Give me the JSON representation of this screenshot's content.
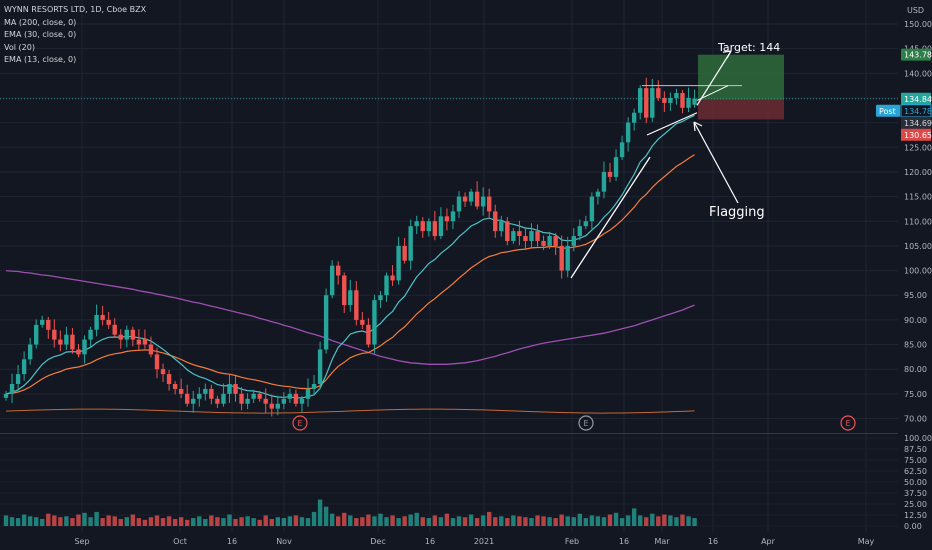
{
  "legend": {
    "title": "WYNN RESORTS LTD, 1D, Cboe BZX",
    "ma200": "MA (200, close, 0)",
    "ema30": "EMA (30, close, 0)",
    "vol": "Vol (20)",
    "ema13": "EMA (13, close, 0)"
  },
  "currency": "USD",
  "colors": {
    "background": "#131722",
    "up": "#26a69a",
    "down": "#ef5350",
    "ma200": "#9c4fb0",
    "ema30": "#f57c3a",
    "ema13": "#4cc3c7",
    "target_zone": "#2e6b3b",
    "stop_zone": "#6b2c33"
  },
  "tags": {
    "target": "143.78",
    "last": "134.84",
    "post_label": "Post",
    "post_value": "134.78",
    "entry": "134.69",
    "stop": "130.65"
  },
  "annotations": {
    "target": "Target: 144",
    "flag": "Flagging"
  },
  "chart_data": [
    {
      "type": "candlestick",
      "pane": "price",
      "ylim": [
        65,
        152
      ],
      "y_ticks": [
        "70.00",
        "75.00",
        "80.00",
        "85.00",
        "90.00",
        "95.00",
        "100.00",
        "105.00",
        "110.00",
        "115.00",
        "120.00",
        "125.00",
        "130.00",
        "135.00",
        "140.00",
        "145.00",
        "150.00"
      ],
      "x_ticks": [
        "Sep",
        "Oct",
        "16",
        "Nov",
        "Dec",
        "16",
        "2021",
        "Feb",
        "16",
        "Mar",
        "16",
        "Apr",
        "May"
      ],
      "close": [
        75,
        77,
        79,
        82,
        85,
        89,
        90,
        88,
        86,
        85,
        87,
        84,
        83,
        86,
        88,
        91,
        90,
        89,
        87,
        86,
        88,
        86,
        85,
        85,
        83,
        80,
        79,
        77,
        76,
        75,
        73,
        74,
        75,
        76,
        74,
        73,
        75,
        77,
        75,
        73,
        74,
        75,
        74,
        73,
        72,
        73,
        74,
        75,
        73,
        74,
        76,
        77,
        84,
        95,
        101,
        99,
        93,
        96,
        90,
        89,
        85,
        94,
        95,
        99,
        98,
        105,
        102,
        109,
        110,
        108,
        110,
        107,
        111,
        110,
        112,
        115,
        114,
        116,
        113,
        115,
        112,
        108,
        110,
        106,
        108,
        107,
        106,
        108,
        106,
        105,
        107,
        105,
        100,
        105,
        107,
        109,
        110,
        115,
        116,
        120,
        119,
        123,
        126,
        130,
        132,
        137,
        131,
        137,
        135,
        134,
        135,
        136,
        133,
        135,
        134.84
      ],
      "ma200": [
        100,
        99.9,
        99.8,
        99.6,
        99.5,
        99.3,
        99.1,
        99,
        98.8,
        98.6,
        98.4,
        98.2,
        98,
        97.8,
        97.6,
        97.4,
        97.2,
        97,
        96.8,
        96.6,
        96.4,
        96.2,
        95.9,
        95.7,
        95.5,
        95.2,
        95,
        94.7,
        94.5,
        94.2,
        93.9,
        93.6,
        93.4,
        93.1,
        92.8,
        92.5,
        92.2,
        91.9,
        91.6,
        91.3,
        91,
        90.7,
        90.3,
        90,
        89.6,
        89.3,
        88.9,
        88.6,
        88.2,
        87.8,
        87.4,
        87.1,
        86.7,
        86.3,
        85.8,
        85.4,
        85,
        84.6,
        84.2,
        83.8,
        83.4,
        83,
        82.6,
        82.3,
        82,
        81.7,
        81.5,
        81.3,
        81.2,
        81.1,
        81,
        81,
        81,
        81,
        81.1,
        81.2,
        81.3,
        81.5,
        81.7,
        82,
        82.3,
        82.6,
        83,
        83.3,
        83.7,
        84.1,
        84.4,
        84.7,
        85,
        85.3,
        85.5,
        85.7,
        85.9,
        86.1,
        86.3,
        86.5,
        86.7,
        86.9,
        87.1,
        87.3,
        87.6,
        87.9,
        88.2,
        88.5,
        88.8,
        89.2,
        89.6,
        90,
        90.4,
        90.8,
        91.2,
        91.6,
        92,
        92.5,
        93
      ]
    },
    {
      "type": "bar",
      "pane": "volume",
      "values": [
        12,
        10,
        9,
        13,
        11,
        10,
        8,
        14,
        12,
        10,
        11,
        9,
        13,
        15,
        10,
        16,
        9,
        12,
        11,
        8,
        10,
        13,
        9,
        7,
        10,
        12,
        9,
        11,
        8,
        10,
        7,
        9,
        11,
        8,
        12,
        10,
        9,
        13,
        8,
        10,
        11,
        9,
        7,
        12,
        8,
        10,
        9,
        11,
        12,
        10,
        9,
        16,
        30,
        22,
        14,
        11,
        15,
        12,
        9,
        10,
        13,
        11,
        14,
        10,
        12,
        9,
        11,
        13,
        15,
        10,
        9,
        12,
        10,
        14,
        9,
        11,
        10,
        13,
        9,
        12,
        16,
        10,
        11,
        9,
        12,
        11,
        10,
        9,
        12,
        11,
        10,
        9,
        13,
        11,
        10,
        14,
        9,
        12,
        11,
        10,
        13,
        15,
        9,
        12,
        20,
        12,
        10,
        14,
        11,
        13,
        12,
        10,
        13,
        11,
        9
      ]
    }
  ]
}
